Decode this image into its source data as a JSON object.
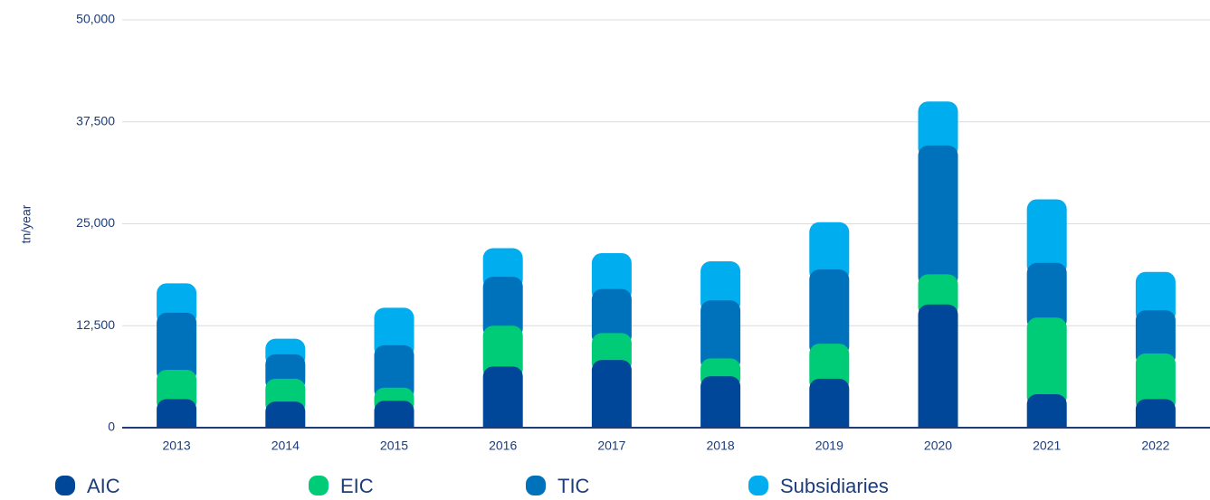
{
  "chart_data": {
    "type": "stacked_bar",
    "y_label": "tn/year",
    "categories": [
      "2013",
      "2014",
      "2015",
      "2016",
      "2017",
      "2018",
      "2019",
      "2020",
      "2021",
      "2022"
    ],
    "series": [
      {
        "name": "AIC",
        "color": "#00479a",
        "values": [
          3.5,
          3.2,
          3.3,
          7.5,
          8.3,
          6.3,
          6.0,
          15.1,
          4.1,
          3.5
        ]
      },
      {
        "name": "EIC",
        "color": "#00cc77",
        "values": [
          3.6,
          2.8,
          1.6,
          5.0,
          3.3,
          2.2,
          4.3,
          3.7,
          9.4,
          5.6
        ]
      },
      {
        "name": "TIC",
        "color": "#0072bc",
        "values": [
          7.0,
          3.0,
          5.2,
          6.0,
          5.4,
          7.1,
          9.1,
          15.8,
          6.7,
          5.3
        ]
      },
      {
        "name": "Subsidiaries",
        "color": "#00aeef",
        "values": [
          3.6,
          1.9,
          4.6,
          3.5,
          4.4,
          4.8,
          5.8,
          5.4,
          7.8,
          4.7
        ]
      }
    ],
    "value_scale": 1000,
    "ylim": [
      0,
      50000
    ],
    "yticks": [
      0,
      {
        "value": 12500,
        "label": "12,500"
      },
      {
        "value": 25000,
        "label": "25,000"
      },
      {
        "value": 37500,
        "label": "37,500"
      },
      {
        "value": 50000,
        "label": "50,000"
      }
    ],
    "grid": true
  }
}
